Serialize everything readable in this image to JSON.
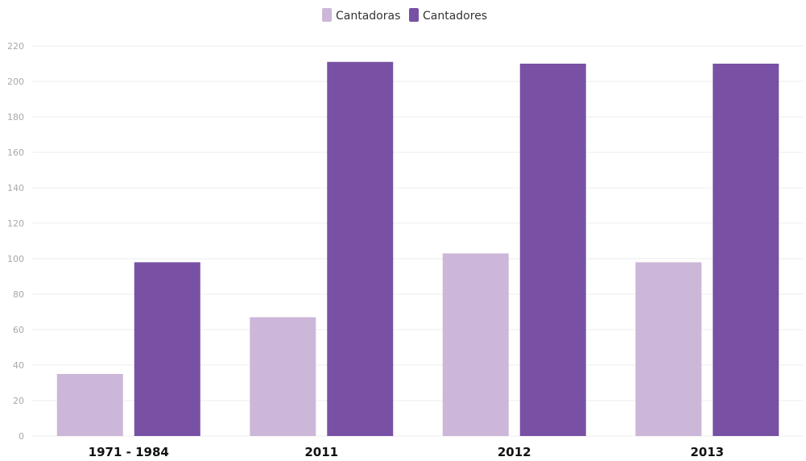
{
  "chart_data": {
    "type": "bar",
    "categories": [
      "1971 - 1984",
      "2011",
      "2012",
      "2013"
    ],
    "series": [
      {
        "name": "Cantadoras",
        "color": "#cdb7d9",
        "values": [
          35,
          67,
          103,
          98
        ]
      },
      {
        "name": "Cantadores",
        "color": "#7851a4",
        "values": [
          98,
          211,
          210,
          210
        ]
      }
    ],
    "ylim": [
      0,
      220
    ],
    "yticks": [
      0,
      20,
      40,
      60,
      80,
      100,
      120,
      140,
      160,
      180,
      200,
      220
    ],
    "grid": true,
    "legend_position": "top-center",
    "title": "",
    "xlabel": "",
    "ylabel": ""
  }
}
